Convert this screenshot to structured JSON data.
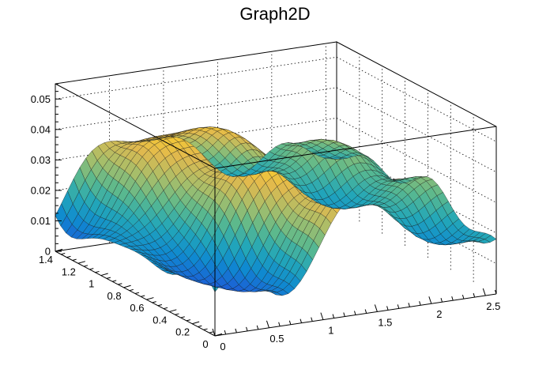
{
  "chart_data": {
    "type": "surface-3d",
    "title": "Graph2D",
    "xlabel": "",
    "ylabel": "",
    "zlabel": "",
    "xlim": [
      0,
      2.6
    ],
    "ylim": [
      0,
      1.4
    ],
    "zlim": [
      0,
      0.055
    ],
    "grid": true,
    "colormap": [
      "#352a87",
      "#1d5dd6",
      "#0f8ad0",
      "#23a7b8",
      "#5cb98d",
      "#a7be6a",
      "#e1b94e",
      "#fdd028",
      "#f9fb0e"
    ],
    "x_ticks": [
      {
        "value": 0,
        "label": "0"
      },
      {
        "value": 0.5,
        "label": "0.5"
      },
      {
        "value": 1,
        "label": "1"
      },
      {
        "value": 1.5,
        "label": "1.5"
      },
      {
        "value": 2,
        "label": "2"
      },
      {
        "value": 2.5,
        "label": "2.5"
      }
    ],
    "y_ticks": [
      {
        "value": 0,
        "label": "0"
      },
      {
        "value": 0.2,
        "label": "0.2"
      },
      {
        "value": 0.4,
        "label": "0.4"
      },
      {
        "value": 0.6,
        "label": "0.6"
      },
      {
        "value": 0.8,
        "label": "0.8"
      },
      {
        "value": 1,
        "label": "1"
      },
      {
        "value": 1.2,
        "label": "1.2"
      },
      {
        "value": 1.4,
        "label": "1.4"
      }
    ],
    "z_ticks": [
      {
        "value": 0,
        "label": "0"
      },
      {
        "value": 0.01,
        "label": "0.01"
      },
      {
        "value": 0.02,
        "label": "0.02"
      },
      {
        "value": 0.03,
        "label": "0.03"
      },
      {
        "value": 0.04,
        "label": "0.04"
      },
      {
        "value": 0.05,
        "label": "0.05"
      }
    ]
  }
}
